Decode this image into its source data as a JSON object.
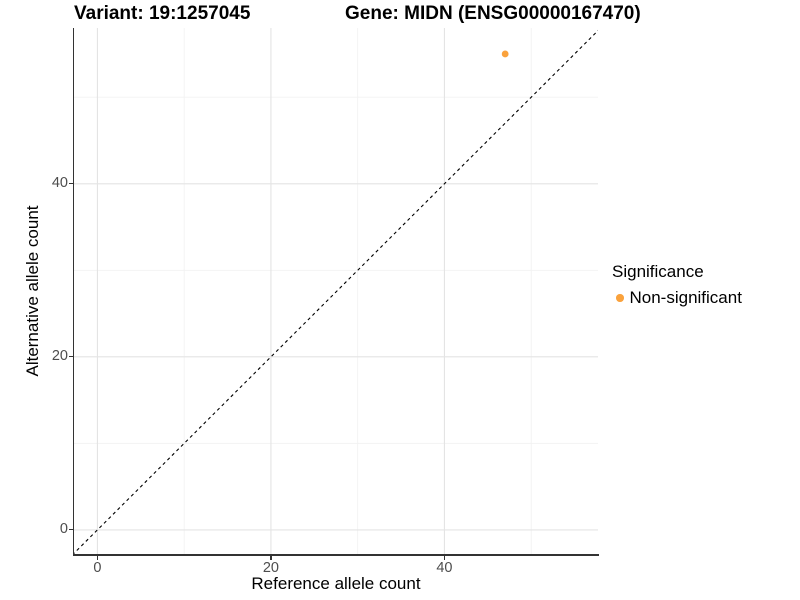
{
  "titles": {
    "variant": "Variant: 19:1257045",
    "gene": "Gene: MIDN (ENSG00000167470)"
  },
  "legend": {
    "title": "Significance",
    "items": [
      {
        "label": "Non-significant",
        "color": "#FAA23C"
      }
    ]
  },
  "colors": {
    "point": "#FAA23C",
    "grid_major": "#E4E4E4",
    "grid_minor": "#F2F2F2",
    "axis_line": "#333333",
    "tick_text": "#4d4d4d",
    "identity_line": "#000000",
    "panel_background": "#ffffff"
  },
  "chart_data": {
    "type": "scatter",
    "title_left": "Variant: 19:1257045",
    "title_right": "Gene: MIDN (ENSG00000167470)",
    "points": [
      {
        "x": 47,
        "y": 55,
        "series": "Non-significant"
      }
    ],
    "series_colors": {
      "Non-significant": "#FAA23C"
    },
    "identity_line": {
      "style": "dashed",
      "equation": "y = x",
      "color": "#000000"
    },
    "xlabel": "Reference allele count",
    "ylabel": "Alternative allele count",
    "xlim": [
      -2.7,
      57.7
    ],
    "ylim": [
      -2.9,
      58.0
    ],
    "x_ticks": [
      0,
      20,
      40
    ],
    "y_ticks": [
      0,
      20,
      40
    ],
    "x_minor_ticks": [
      10,
      30,
      50
    ],
    "y_minor_ticks": [
      10,
      30,
      50
    ],
    "grid": "major+minor",
    "legend_position": "right",
    "legend_title": "Significance",
    "legend_entries": [
      "Non-significant"
    ]
  }
}
